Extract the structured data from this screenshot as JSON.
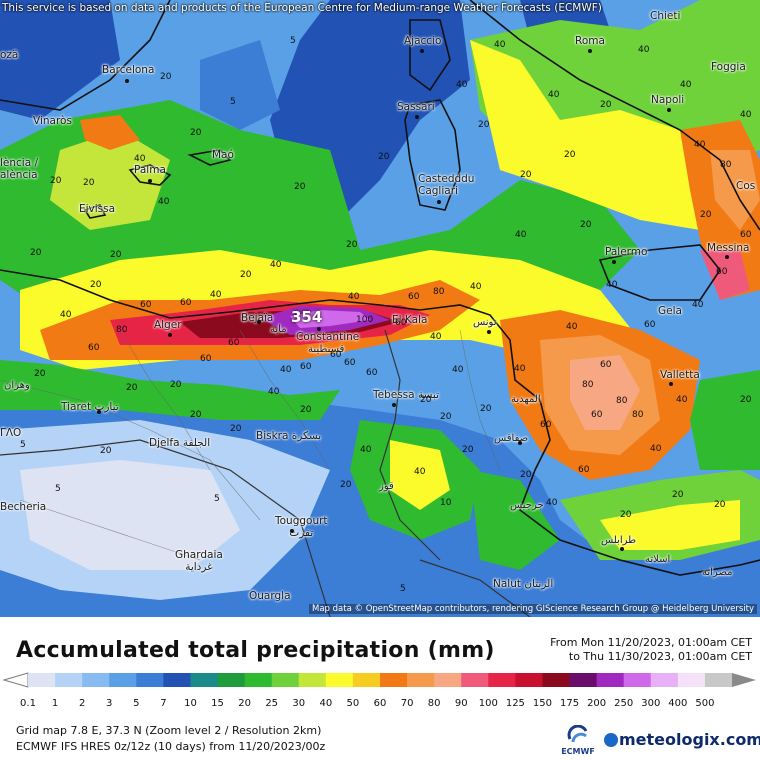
{
  "map": {
    "notice": "This service is based on data and products of the European Centre for Medium-range Weather Forecasts (ECMWF)",
    "attribution": "Map data © OpenStreetMap contributors, rendering GIScience Research Group @ Heidelberg University",
    "peak_label": "354",
    "cities": [
      {
        "name": "Barcelona"
      },
      {
        "name": "Ajaccio"
      },
      {
        "name": "Roma"
      },
      {
        "name": "Foggia"
      },
      {
        "name": "Chieti"
      },
      {
        "name": "Napoli"
      },
      {
        "name": "Vinaròs"
      },
      {
        "name": "Maó"
      },
      {
        "name": "Sassari"
      },
      {
        "name": "Palma"
      },
      {
        "name": "Castedddu\nCagliari"
      },
      {
        "name": "Eivissa"
      },
      {
        "name": "lència /\nalència"
      },
      {
        "name": "Palermo"
      },
      {
        "name": "Messina"
      },
      {
        "name": "Bejaïa"
      },
      {
        "name": "Alger"
      },
      {
        "name": "El Kala"
      },
      {
        "name": "Constantine"
      },
      {
        "name": "قسنطينة"
      },
      {
        "name": "تونس"
      },
      {
        "name": "Gela"
      },
      {
        "name": "Valletta"
      },
      {
        "name": "وهران"
      },
      {
        "name": "Tiaret تيارت"
      },
      {
        "name": "Tebessa تبسة"
      },
      {
        "name": "المهدية"
      },
      {
        "name": "صفاقس"
      },
      {
        "name": "Djelfa الجلفة"
      },
      {
        "name": "Biskra بسكرة"
      },
      {
        "name": "قوز"
      },
      {
        "name": "Touggourt\nتقرت"
      },
      {
        "name": "جرجيس"
      },
      {
        "name": "Ghardaia\nغرداية"
      },
      {
        "name": "طرابلس"
      },
      {
        "name": "Ouargla"
      },
      {
        "name": "اسلاته"
      },
      {
        "name": "مصراته"
      },
      {
        "name": "Nalut الزنتان"
      },
      {
        "name": "Becheria"
      },
      {
        "name": "ozä"
      },
      {
        "name": "ΓΛΟ"
      },
      {
        "name": "Cos"
      },
      {
        "name": "ماية"
      }
    ],
    "contour_labels": [
      "5",
      "5",
      "20",
      "40",
      "20",
      "40",
      "20",
      "20",
      "40",
      "20",
      "20",
      "40",
      "20",
      "40",
      "20",
      "40",
      "40",
      "80",
      "60",
      "60",
      "60",
      "80",
      "60",
      "40",
      "40",
      "40",
      "60",
      "80",
      "60",
      "80",
      "60",
      "40",
      "60",
      "40",
      "60",
      "80",
      "100",
      "60",
      "40",
      "20",
      "20",
      "20",
      "40",
      "20",
      "20",
      "40",
      "20",
      "40",
      "20",
      "20",
      "20",
      "5",
      "5",
      "5",
      "10",
      "20",
      "20",
      "40",
      "60",
      "40",
      "20",
      "20",
      "20",
      "20",
      "20",
      "5",
      "20",
      "20",
      "20",
      "20",
      "40",
      "40",
      "20",
      "60",
      "60",
      "60",
      "80",
      "60",
      "40",
      "20",
      "40",
      "20",
      "20",
      "20",
      "40",
      "40",
      "20",
      "40",
      "40",
      "60",
      "40",
      "60",
      "40",
      "60"
    ]
  },
  "legend": {
    "title": "Accumulated total precipitation (mm)",
    "period_from": "From Mon 11/20/2023, 01:00am CET",
    "period_to": "to Thu 11/30/2023, 01:00am CET",
    "scale": [
      {
        "v": "0.1",
        "c": "#dde3f2"
      },
      {
        "v": "1",
        "c": "#b5d3f6"
      },
      {
        "v": "2",
        "c": "#88bbf2"
      },
      {
        "v": "3",
        "c": "#5aa0e6"
      },
      {
        "v": "5",
        "c": "#3c7dd6"
      },
      {
        "v": "7",
        "c": "#2152b4"
      },
      {
        "v": "10",
        "c": "#1a8a8a"
      },
      {
        "v": "15",
        "c": "#1e9b3c"
      },
      {
        "v": "20",
        "c": "#2fba2f"
      },
      {
        "v": "25",
        "c": "#6fd23a"
      },
      {
        "v": "30",
        "c": "#c4e63a"
      },
      {
        "v": "40",
        "c": "#fbfb2c"
      },
      {
        "v": "50",
        "c": "#f5cc1f"
      },
      {
        "v": "60",
        "c": "#f27a14"
      },
      {
        "v": "70",
        "c": "#f59a4a"
      },
      {
        "v": "80",
        "c": "#f7a882"
      },
      {
        "v": "90",
        "c": "#ef5a7a"
      },
      {
        "v": "100",
        "c": "#e62446"
      },
      {
        "v": "125",
        "c": "#c8102e"
      },
      {
        "v": "150",
        "c": "#8c0a1e"
      },
      {
        "v": "175",
        "c": "#6a0c6a"
      },
      {
        "v": "200",
        "c": "#a02abf"
      },
      {
        "v": "250",
        "c": "#d068ea"
      },
      {
        "v": "300",
        "c": "#e8b0f6"
      },
      {
        "v": "400",
        "c": "#f6e2f8"
      },
      {
        "v": "500",
        "c": "#c8c8c8"
      }
    ],
    "grid_info": "Grid map 7.8 E, 37.3 N (Zoom level 2 / Resolution 2km)",
    "model_info": "ECMWF IFS HRES 0z/12z (10 days) from 11/20/2023/00z",
    "ecmwf_label": "ECMWF",
    "brand": "meteologix.com"
  }
}
